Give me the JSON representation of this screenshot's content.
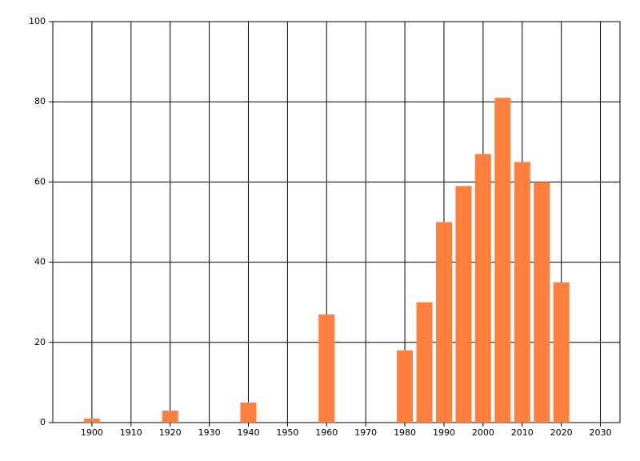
{
  "chart_data": {
    "type": "bar",
    "x": [
      1900,
      1920,
      1940,
      1960,
      1980,
      1985,
      1990,
      1995,
      2000,
      2005,
      2010,
      2015,
      2020
    ],
    "values": [
      1,
      3,
      5,
      27,
      18,
      30,
      50,
      59,
      67,
      81,
      65,
      60,
      35
    ],
    "color": "#ff7f3f",
    "xlim": [
      1890,
      2035
    ],
    "xticks": [
      1900,
      1910,
      1920,
      1930,
      1940,
      1950,
      1960,
      1970,
      1980,
      1990,
      2000,
      2010,
      2020,
      2030
    ],
    "ylim": [
      0,
      100
    ],
    "yticks": [
      0,
      20,
      40,
      60,
      80,
      100
    ],
    "grid": true
  }
}
